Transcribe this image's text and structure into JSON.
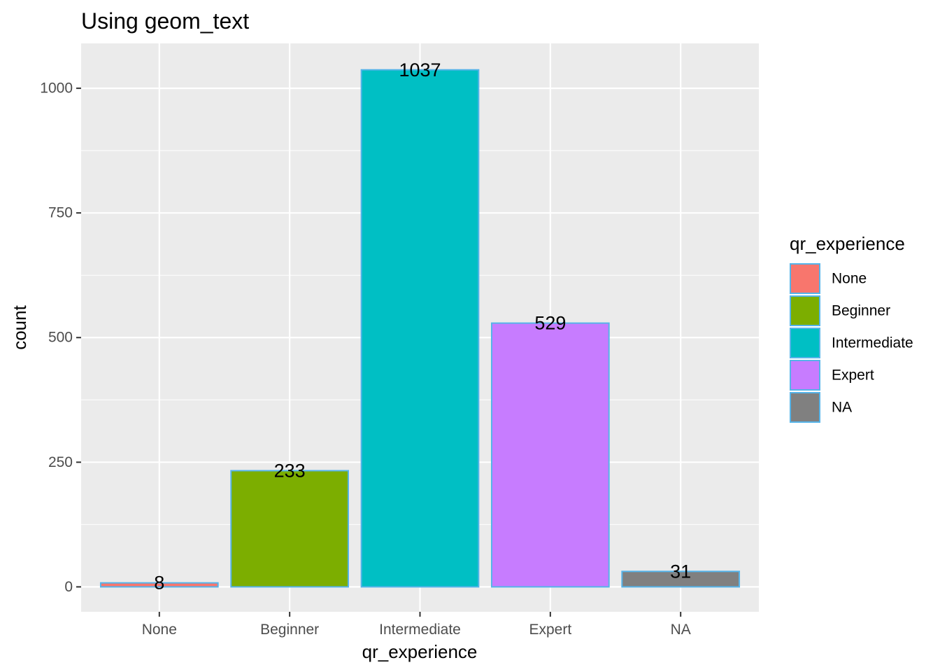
{
  "chart_data": {
    "type": "bar",
    "title": "Using geom_text",
    "xlabel": "qr_experience",
    "ylabel": "count",
    "categories": [
      "None",
      "Beginner",
      "Intermediate",
      "Expert",
      "NA"
    ],
    "values": [
      8,
      233,
      1037,
      529,
      31
    ],
    "data_labels": [
      "8",
      "233",
      "1037",
      "529",
      "31"
    ],
    "colors": [
      "#F8766D",
      "#7CAE00",
      "#00BFC4",
      "#C77CFF",
      "#808080"
    ],
    "bar_outline_color": "#56B4E9",
    "ylim": [
      -50,
      1090
    ],
    "y_ticks": [
      0,
      250,
      500,
      750,
      1000
    ],
    "y_tick_labels": [
      "0",
      "250",
      "500",
      "750",
      "1000"
    ],
    "panel_background": "#EBEBEB",
    "grid": true,
    "legend": {
      "title": "qr_experience",
      "position": "right",
      "entries": [
        "None",
        "Beginner",
        "Intermediate",
        "Expert",
        "NA"
      ]
    }
  }
}
